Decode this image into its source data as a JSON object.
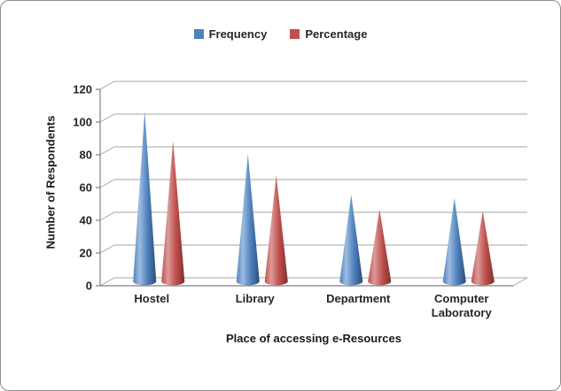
{
  "chart_data": {
    "type": "bar",
    "style": "3d-cone",
    "title": "",
    "xlabel": "Place of accessing e-Resources",
    "ylabel": "Number of Respondents",
    "categories": [
      "Hostel",
      "Library",
      "Department",
      "Computer Laboratory"
    ],
    "series": [
      {
        "name": "Frequency",
        "color": "#4F81BD",
        "highlight": "#9DBCE0",
        "dark": "#2A4E79",
        "values": [
          104,
          78,
          53,
          51
        ]
      },
      {
        "name": "Percentage",
        "color": "#C0504D",
        "highlight": "#DA9C9A",
        "dark": "#7D302E",
        "values": [
          86,
          65,
          44,
          43
        ]
      }
    ],
    "ylim": [
      0,
      120
    ],
    "yticks": [
      0,
      20,
      40,
      60,
      80,
      100,
      120
    ],
    "legend_position": "top",
    "grid": true,
    "grid_color": "#A6A6A6",
    "axis_color": "#808080"
  }
}
